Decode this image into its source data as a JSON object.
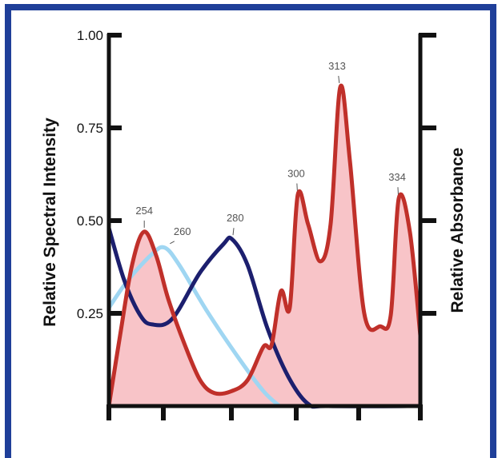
{
  "chart_data": {
    "type": "area",
    "xlabel": "",
    "ylabel": "Relative Spectral Intensity",
    "y2label": "Relative Absorbance",
    "xlim": [
      240,
      340
    ],
    "ylim": [
      0,
      1.0
    ],
    "x_ticks": [
      "240",
      "260",
      "280",
      "300",
      "320",
      "340"
    ],
    "y_ticks": [
      "0.25",
      "0.50",
      "0.75",
      "1.00"
    ],
    "grid": false,
    "colors": {
      "emission_line": "#c0302a",
      "emission_fill": "#f8c4c8",
      "absorbance_260": "#9fd6f2",
      "absorbance_280": "#1c1f6e",
      "frame": "#1f3f99"
    },
    "series": [
      {
        "x": [
          240,
          244.1,
          248.5,
          252.9,
          257.4,
          261.4,
          266.1,
          270.8,
          275,
          280,
          285,
          289.9,
          292.4,
          295.3,
          298,
          300.5,
          303.8,
          307.7,
          311,
          314.1,
          317.2,
          321.8,
          327,
          330.4,
          333,
          336.6,
          340
        ],
        "y": [
          0,
          0.19,
          0.38,
          0.47,
          0.405,
          0.29,
          0.17,
          0.07,
          0.035,
          0.04,
          0.07,
          0.16,
          0.165,
          0.31,
          0.265,
          0.57,
          0.49,
          0.39,
          0.49,
          0.86,
          0.66,
          0.25,
          0.215,
          0.245,
          0.56,
          0.47,
          0.19
        ]
      },
      {
        "x": [
          240,
          247.1,
          255.9,
          260.4,
          264.7,
          272.9,
          282.6,
          289.9,
          294.8
        ],
        "y": [
          0.265,
          0.34,
          0.41,
          0.427,
          0.38,
          0.255,
          0.125,
          0.04,
          0
        ]
      },
      {
        "x": [
          240,
          245.6,
          251.5,
          255.9,
          262.6,
          270.8,
          277.7,
          280.2,
          285,
          291.1,
          297.5,
          303.8,
          310.3,
          340
        ],
        "y": [
          0.48,
          0.34,
          0.245,
          0.22,
          0.235,
          0.36,
          0.437,
          0.45,
          0.38,
          0.21,
          0.08,
          0.006,
          0,
          0
        ]
      }
    ],
    "annotations": [
      {
        "text": "254",
        "x": 253,
        "y": 0.47
      },
      {
        "text": "260",
        "x": 260.4,
        "y": 0.427
      },
      {
        "text": "280",
        "x": 280.2,
        "y": 0.45
      },
      {
        "text": "300",
        "x": 300.5,
        "y": 0.57
      },
      {
        "text": "313",
        "x": 314.1,
        "y": 0.86
      },
      {
        "text": "334",
        "x": 333,
        "y": 0.56
      }
    ]
  }
}
